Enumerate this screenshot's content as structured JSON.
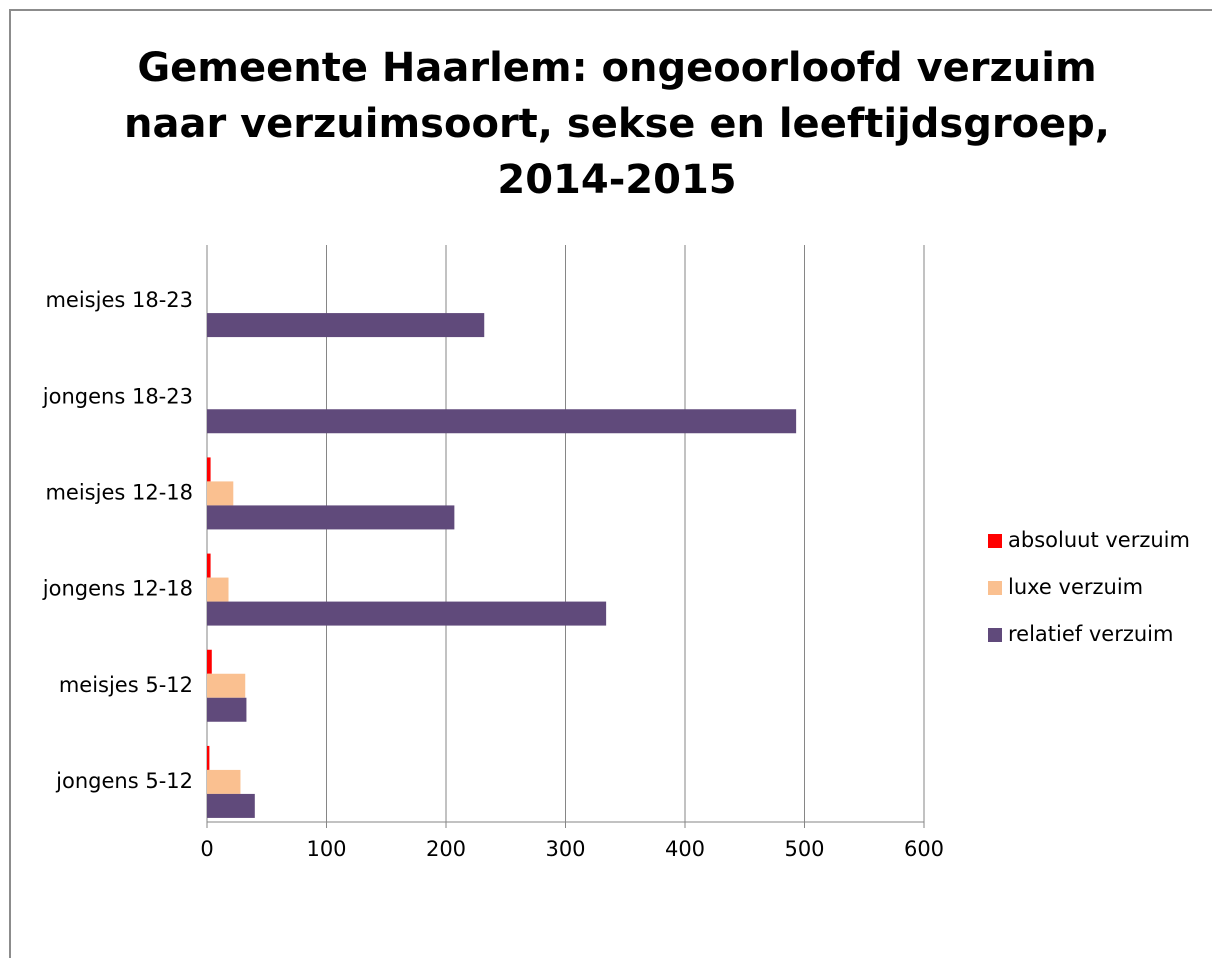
{
  "chart_data": {
    "type": "barh",
    "title": [
      "Gemeente Haarlem: ongeoorloofd verzuim",
      "naar verzuimsoort, sekse en leeftijdsgroep,",
      "2014-2015"
    ],
    "categories": [
      "jongens 5-12",
      "meisjes 5-12",
      "jongens 12-18",
      "meisjes 12-18",
      "jongens 18-23",
      "meisjes 18-23"
    ],
    "series": [
      {
        "name": "absoluut verzuim",
        "color": "#ff0000",
        "values": [
          2,
          4,
          3,
          3,
          0,
          0
        ]
      },
      {
        "name": "luxe verzuim",
        "color": "#fac090",
        "values": [
          28,
          32,
          18,
          22,
          0,
          0
        ]
      },
      {
        "name": "relatief verzuim",
        "color": "#604a7b",
        "values": [
          40,
          33,
          334,
          207,
          493,
          232
        ]
      }
    ],
    "xlim": [
      0,
      600
    ],
    "xticks": [
      0,
      100,
      200,
      300,
      400,
      500,
      600
    ],
    "grid": true,
    "legend": "right"
  }
}
